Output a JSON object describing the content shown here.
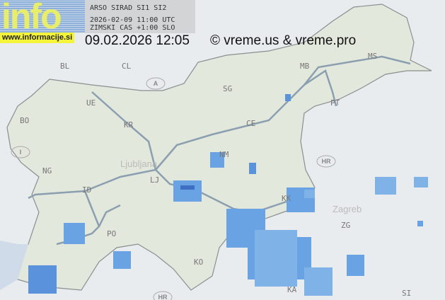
{
  "logo": {
    "text": "info",
    "url": "www.informacije.si"
  },
  "radar_info": {
    "source": "ARSO SIRAD SI1 SI2",
    "utc": "2026-02-09 11:00 UTC",
    "local": "ZIMSKI CAS +1:00 SLO"
  },
  "timestamp": "09.02.2026 12:05",
  "copyright": "© vreme.us & vreme.pro",
  "colors": {
    "land": "#e4e9e0",
    "outside": "#e9ecee",
    "border": "#8a8f90",
    "highway": "#8b9fb0",
    "radar_light": "#7fb3e8",
    "radar_mid": "#5a93dc",
    "radar_strong": "#3f6fc4"
  },
  "countries": [
    "A",
    "I",
    "HR",
    "HR"
  ],
  "city_codes": [
    "BL",
    "CL",
    "UE",
    "BO",
    "KR",
    "LJ",
    "ID",
    "NG",
    "PO",
    "KO",
    "CE",
    "SG",
    "MB",
    "MS",
    "PT",
    "NM",
    "KK",
    "ZG",
    "KA",
    "SI"
  ],
  "cities": [
    "Ljubljana",
    "Zagreb"
  ]
}
